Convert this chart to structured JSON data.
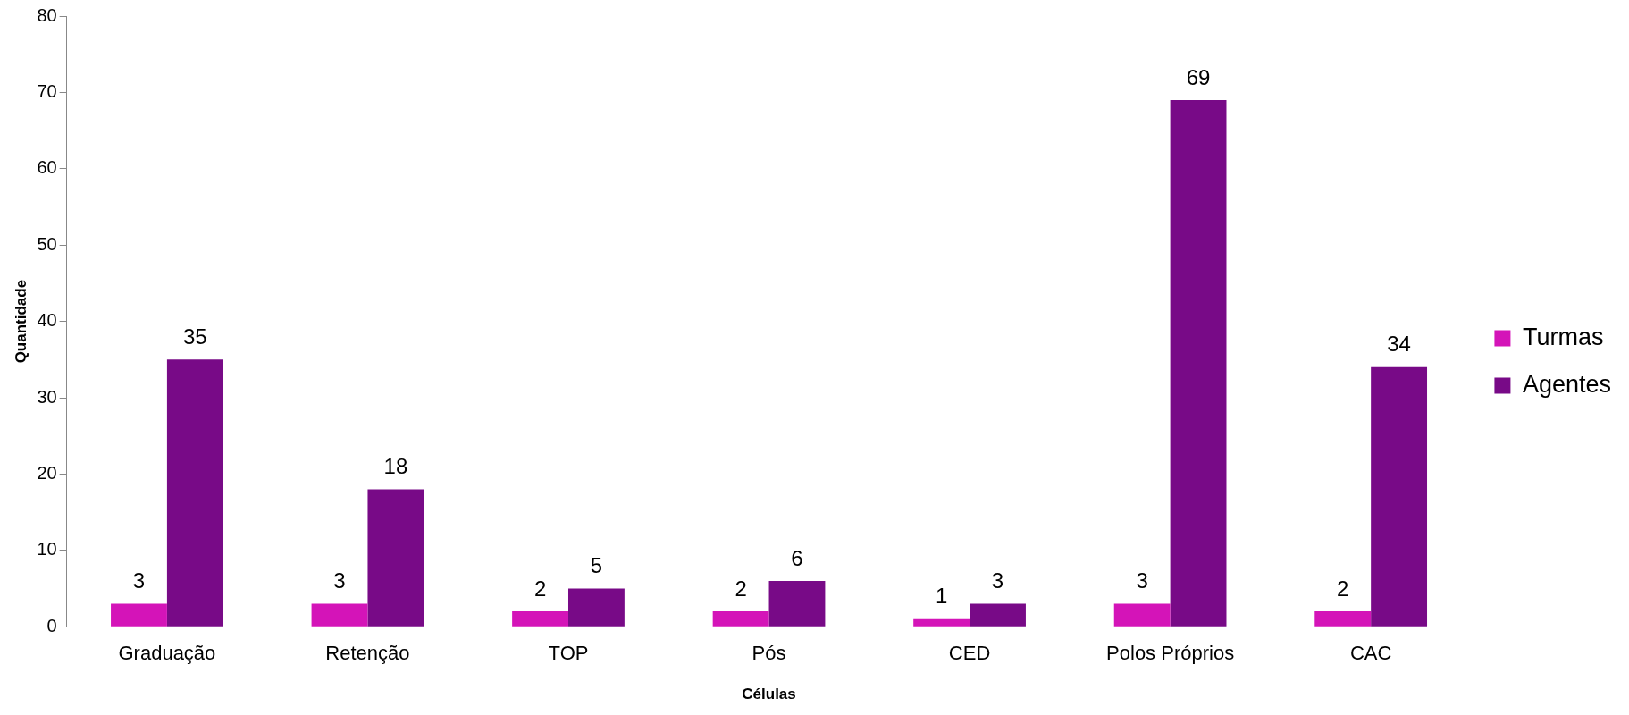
{
  "chart_data": {
    "type": "bar",
    "xlabel": "Células",
    "ylabel": "Quantidade",
    "categories": [
      "Graduação",
      "Retenção",
      "TOP",
      "Pós",
      "CED",
      "Polos Próprios",
      "CAC"
    ],
    "series": [
      {
        "name": "Turmas",
        "color": "#d414b8",
        "values": [
          3,
          3,
          2,
          2,
          1,
          3,
          2
        ]
      },
      {
        "name": "Agentes",
        "color": "#780a87",
        "values": [
          35,
          18,
          5,
          6,
          3,
          69,
          34
        ]
      }
    ],
    "ylim": [
      0,
      80
    ],
    "yticks": [
      0,
      10,
      20,
      30,
      40,
      50,
      60,
      70,
      80
    ],
    "grid": false,
    "legend": "right",
    "data_labels": true
  }
}
